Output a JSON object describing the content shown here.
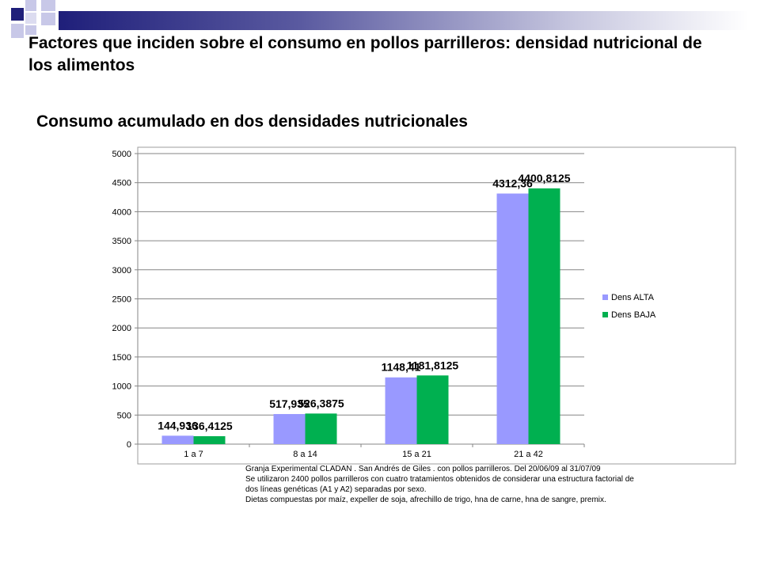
{
  "header": {
    "title": "Factores que inciden sobre el consumo en pollos parrilleros: densidad nutricional de los alimentos",
    "subtitle": "Consumo acumulado en dos densidades nutricionales"
  },
  "colors": {
    "dens_alta": "#9999ff",
    "dens_baja": "#00b050",
    "decor_navy": "#1f1f7a",
    "decor_lavender": "#c8c8e8"
  },
  "chart_data": {
    "type": "bar",
    "categories": [
      "1 a 7",
      "8 a 14",
      "15 a 21",
      "21 a 42"
    ],
    "series": [
      {
        "name": "Dens ALTA",
        "values": [
          144.936,
          517.935,
          1148.41,
          4312.36
        ],
        "labels": [
          "144,936",
          "517,935",
          "1148,41",
          "4312,36"
        ]
      },
      {
        "name": "Dens BAJA",
        "values": [
          136.4125,
          526.3875,
          1181.8125,
          4400.8125
        ],
        "labels": [
          "136,4125",
          "526,3875",
          "1181,8125",
          "4400,8125"
        ]
      }
    ],
    "ylim": [
      0,
      5000
    ],
    "yticks": [
      "0",
      "500",
      "1000",
      "1500",
      "2000",
      "2500",
      "3000",
      "3500",
      "4000",
      "4500",
      "5000"
    ],
    "xlabel": "",
    "ylabel": "",
    "grid": true,
    "legend_position": "right"
  },
  "notes": [
    "Granja Experimental CLADAN . San Andrés de Giles . con pollos parrilleros. Del 20/06/09 al 31/07/09",
    "Se utilizaron 2400 pollos parrilleros con cuatro tratamientos obtenidos de considerar una estructura factorial de",
    "dos líneas genéticas (A1 y A2) separadas por sexo.",
    "Dietas compuestas por maíz, expeller de soja, afrechillo de trigo, hna de carne, hna de sangre, premix."
  ]
}
